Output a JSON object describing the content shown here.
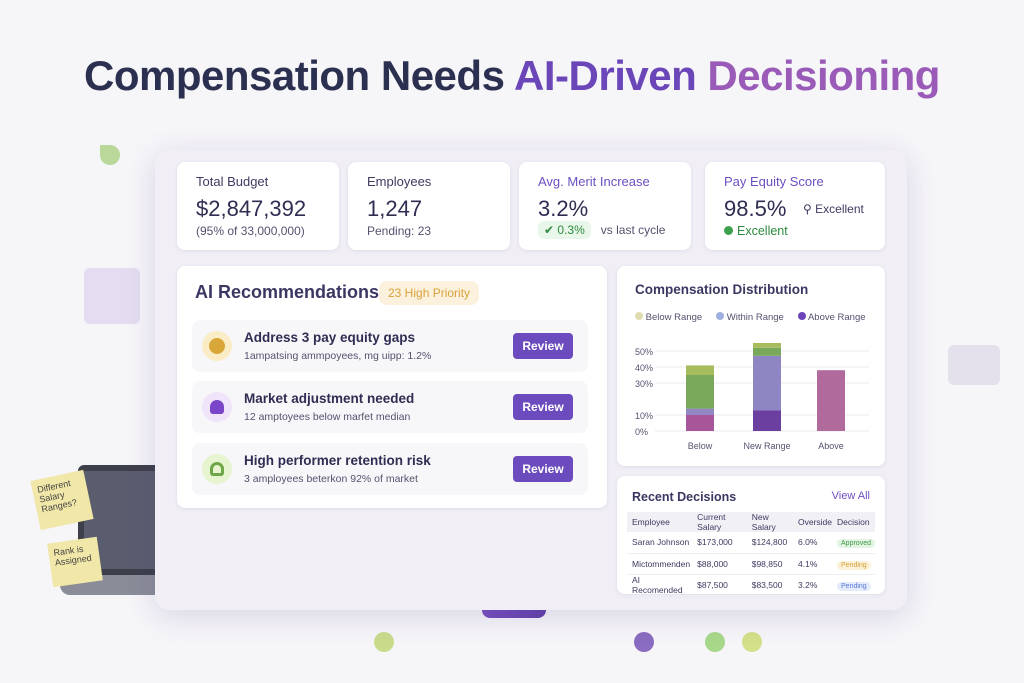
{
  "title": {
    "part1": "Compensation Needs ",
    "part2": "AI-Driven ",
    "part3": "Decisioning"
  },
  "kpis": [
    {
      "label": "Total Budget",
      "value": "$2,847,392",
      "sub": "(95% of 33,000,000)"
    },
    {
      "label": "Employees",
      "value": "1,247",
      "sub": "Pending: 23"
    },
    {
      "label": "Avg. Merit Increase",
      "value": "3.2%",
      "change": "✔ 0.3%",
      "sub": "vs last cycle"
    },
    {
      "label": "Pay Equity Score",
      "value": "98.5%",
      "tag": "Excellent",
      "status": "Excellent"
    }
  ],
  "recommendations": {
    "title": "AI Recommendations",
    "badge": "23 High Priority",
    "items": [
      {
        "title": "Address 3 pay equity gaps",
        "desc": "1ampatsing ammpoyees, mg uipp: 1.2%",
        "button": "Review",
        "icon": "pencil-icon",
        "color": "#d9a63a"
      },
      {
        "title": "Market adjustment needed",
        "desc": "12 amptoyees below marfet median",
        "button": "Review",
        "icon": "user-icon",
        "color": "#7a45c8"
      },
      {
        "title": "High performer retention risk",
        "desc": "3 amployees beterkon 92% of market",
        "button": "Review",
        "icon": "person-icon",
        "color": "#6ea64a"
      }
    ]
  },
  "chart_data": {
    "type": "bar",
    "title": "Compensation Distribution",
    "legend": [
      "Below Range",
      "Within Range",
      "Above Range"
    ],
    "legend_colors": [
      "#e0dcb0",
      "#9fb0e0",
      "#6a44b8"
    ],
    "categories": [
      "Below",
      "New Range",
      "Above"
    ],
    "yticks": [
      "0%",
      "10%",
      "30%",
      "40%",
      "50%"
    ],
    "ylim": [
      0,
      55
    ],
    "stacks": [
      [
        {
          "v": 10,
          "c": "#a8559a"
        },
        {
          "v": 4,
          "c": "#9488c4"
        },
        {
          "v": 21,
          "c": "#79a85a"
        },
        {
          "v": 6,
          "c": "#a7bc5c"
        }
      ],
      [
        {
          "v": 13,
          "c": "#6a3fa0"
        },
        {
          "v": 34,
          "c": "#8e86c2"
        },
        {
          "v": 5,
          "c": "#79a85a"
        },
        {
          "v": 3,
          "c": "#a7bc5c"
        }
      ],
      [
        {
          "v": 38,
          "c": "#b06a9c"
        }
      ]
    ]
  },
  "decisions": {
    "title": "Recent Decisions",
    "view_all": "View All",
    "columns": [
      "Employee",
      "Current Salary",
      "New Salary",
      "Overside",
      "Decision"
    ],
    "rows": [
      [
        "Saran Johnson",
        "$173,000",
        "$124,800",
        "6.0%",
        "Approved"
      ],
      [
        "Mictommenden",
        "$88,000",
        "$98,850",
        "4.1%",
        "Pending"
      ],
      [
        "AI Recomended",
        "$87,500",
        "$83,500",
        "3.2%",
        "Pending"
      ]
    ]
  },
  "sticky_notes": [
    "Different Salary Ranges?",
    "Rank is Assigned"
  ]
}
